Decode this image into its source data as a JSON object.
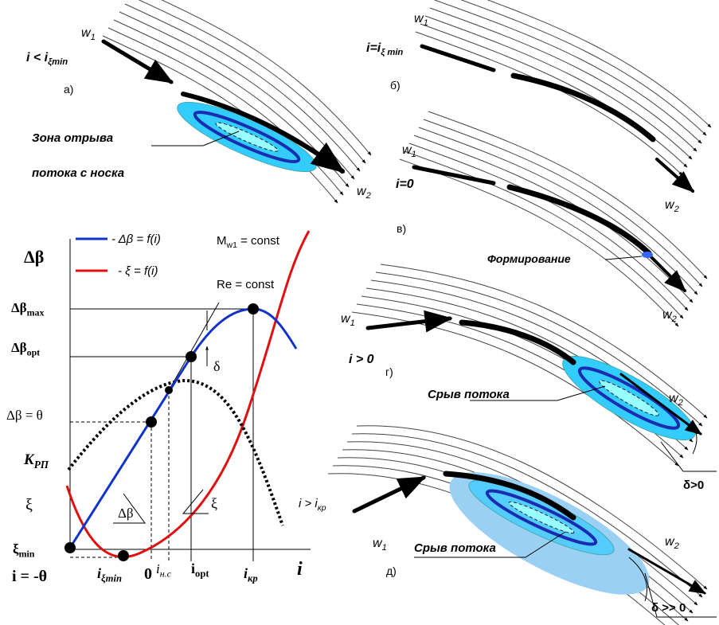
{
  "panels": {
    "a": {
      "w1": {
        "t": "w",
        "s": "1"
      },
      "condition": {
        "t": "i < i",
        "s": "ξmin"
      },
      "letter": "а)",
      "zone_label": "Зона отрыва",
      "zone_label_2": "потока с носка",
      "w2": {
        "t": "w",
        "s": "2"
      }
    },
    "b": {
      "w1": {
        "t": "w",
        "s": "1"
      },
      "condition": {
        "t": "i=i",
        "s": "ξ min"
      },
      "letter": "б)",
      "w2": {
        "t": "w",
        "s": "2"
      }
    },
    "v": {
      "w1": {
        "t": "w",
        "s": "1"
      },
      "condition": "i=0",
      "letter": "в)",
      "zone_label": "Формирование",
      "w2": {
        "t": "w",
        "s": "2"
      }
    },
    "g": {
      "w1": {
        "t": "w",
        "s": "1"
      },
      "condition": "i > 0",
      "letter": "г)",
      "zone_label": "Срыв потока",
      "w2": {
        "t": "w",
        "s": "2"
      },
      "delta": "δ>0"
    },
    "d": {
      "w1": {
        "t": "w",
        "s": "1"
      },
      "letter": "д)",
      "zone_label": "Срыв потока",
      "w2": {
        "t": "w",
        "s": "2"
      },
      "delta": "δ >> 0"
    }
  },
  "graph": {
    "y_title": "Δβ",
    "legend_blue": "- Δβ = f(i)",
    "legend_red": "- ξ = f(i)",
    "mach": {
      "t": "M",
      "s": "w1",
      "a": " = const"
    },
    "re": "Re = const",
    "dbeta_max": {
      "t": "Δβ",
      "s": "max"
    },
    "dbeta_opt": {
      "t": "Δβ",
      "s": "opt"
    },
    "delta": "δ",
    "dbeta_theta": "Δβ = θ",
    "k_rp": {
      "t": "K",
      "s": "РП"
    },
    "xi": "ξ",
    "xi_min": {
      "t": "ξ",
      "s": "min"
    },
    "curve_dbeta": "Δβ",
    "curve_xi": "ξ",
    "i_kr_cond": {
      "t": "i > i",
      "s": "кр"
    },
    "x_neg_theta": "i = -θ",
    "x_i_xi_min": {
      "t": "i",
      "s": "ξmin"
    },
    "x_zero": "0",
    "x_i_nc": {
      "t": "i",
      "s": "н.с"
    },
    "x_i_opt": {
      "t": "i",
      "s": "opt"
    },
    "x_i_kr": {
      "t": "i",
      "s": "кр"
    },
    "x_title": "i"
  }
}
